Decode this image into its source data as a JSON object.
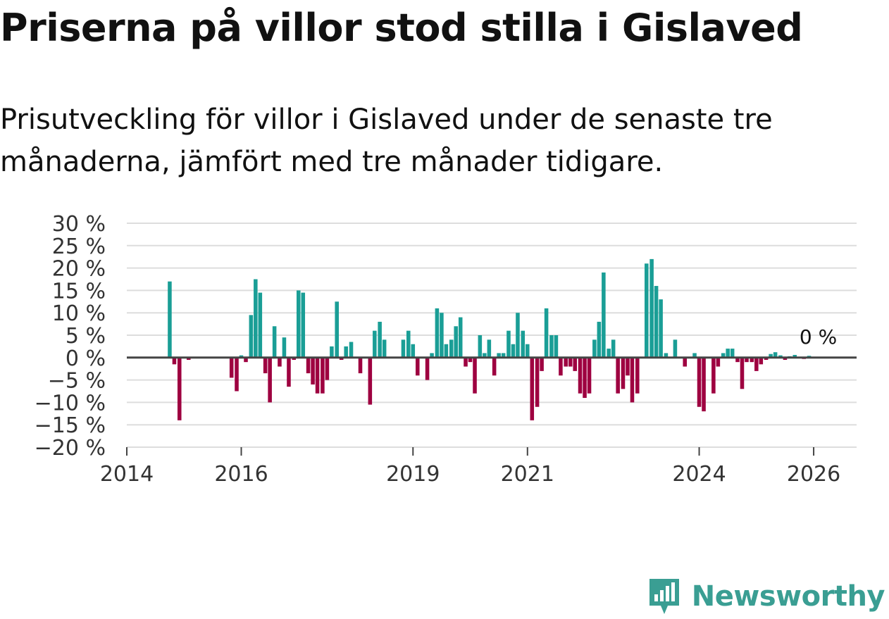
{
  "title": "Priserna på villor stod stilla i Gislaved",
  "subtitle": "Prisutveckling för villor i Gislaved under de senaste tre månaderna, jämfört med tre månader tidigare.",
  "colors": {
    "positive": "#1a9e96",
    "negative": "#9e0040",
    "grid": "#dddddd",
    "zero": "#444444",
    "brand": "#3a9e93"
  },
  "brand": {
    "name": "Newsworthy",
    "icon": "newsworthy-logo-icon"
  },
  "chart_data": {
    "type": "bar",
    "title": "Priserna på villor stod stilla i Gislaved",
    "xlabel": "",
    "ylabel": "",
    "ylim": [
      -20,
      30
    ],
    "y_ticks": [
      30,
      25,
      20,
      15,
      10,
      5,
      0,
      -5,
      -10,
      -15,
      -20
    ],
    "y_tick_labels": [
      "30 %",
      "25 %",
      "20 %",
      "15 %",
      "10 %",
      "5 %",
      "0 %",
      "−5 %",
      "−10 %",
      "−15 %",
      "−20 %"
    ],
    "x_range": [
      2014.0,
      2026.75
    ],
    "x_ticks": [
      2014,
      2016,
      2019,
      2021,
      2024,
      2026
    ],
    "x_tick_labels": [
      "2014",
      "2016",
      "2019",
      "2021",
      "2024",
      "2026"
    ],
    "latest_value_label": "0 %",
    "series": [
      {
        "name": "Prisutveckling",
        "x": [
          2014.75,
          2014.83,
          2014.92,
          2015.08,
          2015.83,
          2015.92,
          2016.0,
          2016.08,
          2016.17,
          2016.25,
          2016.33,
          2016.42,
          2016.5,
          2016.58,
          2016.67,
          2016.75,
          2016.83,
          2016.92,
          2017.0,
          2017.08,
          2017.17,
          2017.25,
          2017.33,
          2017.42,
          2017.5,
          2017.58,
          2017.67,
          2017.75,
          2017.83,
          2017.92,
          2018.08,
          2018.25,
          2018.33,
          2018.42,
          2018.5,
          2018.83,
          2018.92,
          2019.0,
          2019.08,
          2019.25,
          2019.33,
          2019.42,
          2019.5,
          2019.58,
          2019.67,
          2019.75,
          2019.83,
          2019.92,
          2020.0,
          2020.08,
          2020.17,
          2020.25,
          2020.33,
          2020.42,
          2020.5,
          2020.58,
          2020.67,
          2020.75,
          2020.83,
          2020.92,
          2021.0,
          2021.08,
          2021.17,
          2021.25,
          2021.33,
          2021.42,
          2021.5,
          2021.58,
          2021.67,
          2021.75,
          2021.83,
          2021.92,
          2022.0,
          2022.08,
          2022.17,
          2022.25,
          2022.33,
          2022.42,
          2022.5,
          2022.58,
          2022.67,
          2022.75,
          2022.83,
          2022.92,
          2023.08,
          2023.17,
          2023.25,
          2023.33,
          2023.42,
          2023.58,
          2023.75,
          2023.92,
          2024.0,
          2024.08,
          2024.25,
          2024.33,
          2024.42,
          2024.5,
          2024.58,
          2024.67,
          2024.75,
          2024.83,
          2024.92,
          2025.0,
          2025.08,
          2025.17,
          2025.25,
          2025.33,
          2025.42,
          2025.5,
          2025.58,
          2025.67,
          2025.75,
          2025.83,
          2025.92,
          2026.0,
          2026.08
        ],
        "values": [
          17,
          -1.5,
          -14,
          -0.5,
          -4.5,
          -7.5,
          0.5,
          -1,
          9.5,
          17.5,
          14.5,
          -3.5,
          -10,
          7,
          -2,
          4.5,
          -6.5,
          -0.5,
          15,
          14.5,
          -3.5,
          -6,
          -8,
          -8,
          -5,
          2.5,
          12.5,
          -0.5,
          2.5,
          3.5,
          -3.5,
          -10.5,
          6,
          8,
          4,
          4,
          6,
          3,
          -4,
          -5,
          1,
          11,
          10,
          3,
          4,
          7,
          9,
          -2,
          -1,
          -8,
          5,
          1,
          4,
          -4,
          1,
          1,
          6,
          3,
          10,
          6,
          3,
          -14,
          -11,
          -3,
          11,
          5,
          5,
          -4,
          -2,
          -2,
          -3,
          -8,
          -9,
          -8,
          4,
          8,
          19,
          2,
          4,
          -8,
          -7,
          -4,
          -10,
          -8,
          21,
          22,
          16,
          13,
          1,
          4,
          -2,
          1,
          -11,
          -12,
          -8,
          -2,
          1,
          2,
          2,
          -1,
          -7,
          -1,
          -1,
          -3,
          -1.5,
          -0.5,
          0.8,
          1.2,
          0.5,
          -0.5,
          0.3,
          0.6,
          0.2,
          -0.3,
          0.4,
          0.1,
          0
        ]
      }
    ]
  }
}
